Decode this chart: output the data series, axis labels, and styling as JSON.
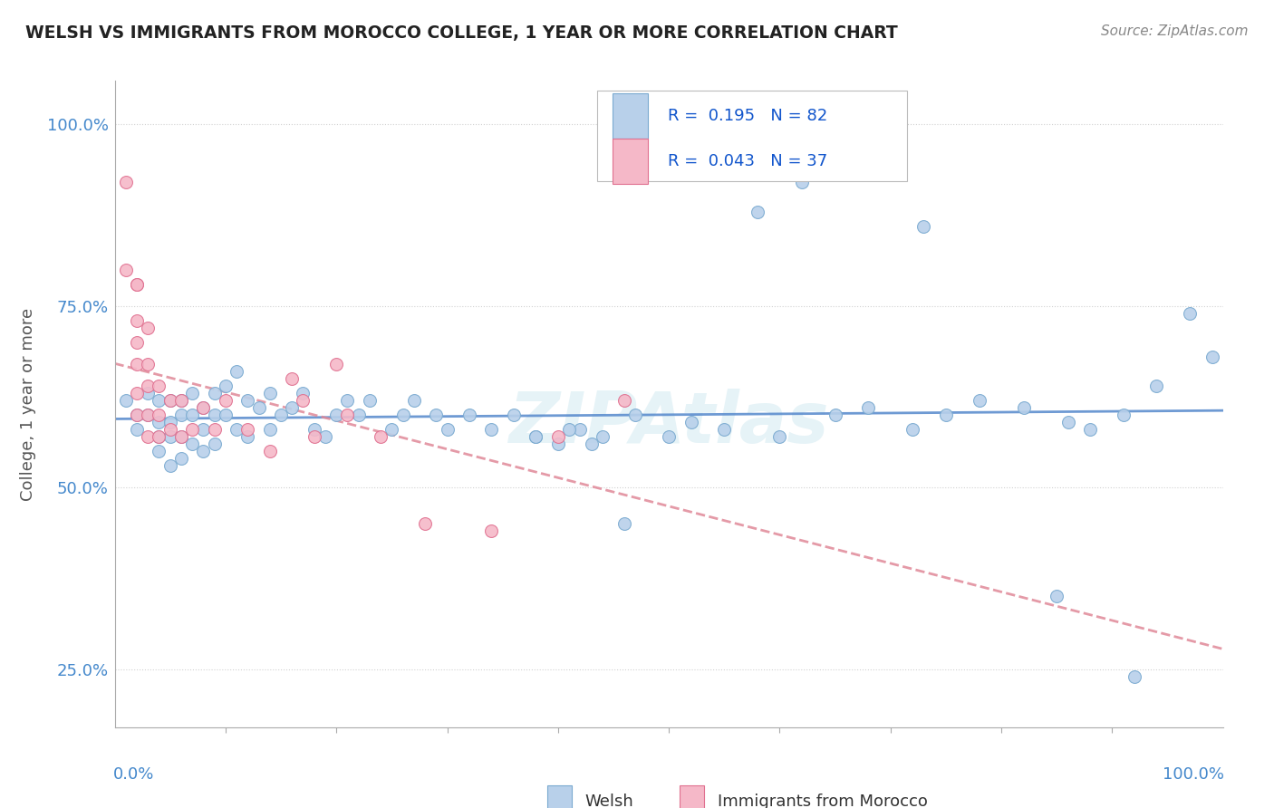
{
  "title": "WELSH VS IMMIGRANTS FROM MOROCCO COLLEGE, 1 YEAR OR MORE CORRELATION CHART",
  "source_text": "Source: ZipAtlas.com",
  "ylabel": "College, 1 year or more",
  "ytick_labels": [
    "25.0%",
    "50.0%",
    "75.0%",
    "100.0%"
  ],
  "ytick_values": [
    0.25,
    0.5,
    0.75,
    1.0
  ],
  "xlim": [
    0.0,
    1.0
  ],
  "ylim": [
    0.17,
    1.06
  ],
  "watermark": "ZIPAtlas",
  "welsh_color": "#b8d0ea",
  "morocco_color": "#f5b8c8",
  "welsh_edge_color": "#7aaad0",
  "morocco_edge_color": "#e07090",
  "trend_welsh_color": "#5588cc",
  "trend_morocco_color": "#e08898",
  "background_color": "#ffffff",
  "grid_color": "#cccccc",
  "title_color": "#222222",
  "axis_label_color": "#4488cc",
  "welsh_x": [
    0.01,
    0.02,
    0.02,
    0.03,
    0.03,
    0.04,
    0.04,
    0.04,
    0.04,
    0.05,
    0.05,
    0.05,
    0.05,
    0.06,
    0.06,
    0.06,
    0.06,
    0.07,
    0.07,
    0.07,
    0.08,
    0.08,
    0.08,
    0.09,
    0.09,
    0.09,
    0.1,
    0.1,
    0.11,
    0.11,
    0.12,
    0.12,
    0.13,
    0.14,
    0.14,
    0.15,
    0.16,
    0.17,
    0.18,
    0.19,
    0.2,
    0.21,
    0.22,
    0.23,
    0.25,
    0.26,
    0.27,
    0.29,
    0.3,
    0.32,
    0.34,
    0.36,
    0.38,
    0.4,
    0.42,
    0.44,
    0.46,
    0.47,
    0.5,
    0.52,
    0.38,
    0.41,
    0.43,
    0.55,
    0.6,
    0.65,
    0.68,
    0.72,
    0.75,
    0.78,
    0.82,
    0.86,
    0.88,
    0.91,
    0.94,
    0.97,
    0.99,
    0.73,
    0.58,
    0.62,
    0.85,
    0.92
  ],
  "welsh_y": [
    0.62,
    0.6,
    0.58,
    0.63,
    0.6,
    0.57,
    0.62,
    0.59,
    0.55,
    0.62,
    0.59,
    0.57,
    0.53,
    0.62,
    0.6,
    0.57,
    0.54,
    0.63,
    0.6,
    0.56,
    0.61,
    0.58,
    0.55,
    0.63,
    0.6,
    0.56,
    0.64,
    0.6,
    0.66,
    0.58,
    0.62,
    0.57,
    0.61,
    0.63,
    0.58,
    0.6,
    0.61,
    0.63,
    0.58,
    0.57,
    0.6,
    0.62,
    0.6,
    0.62,
    0.58,
    0.6,
    0.62,
    0.6,
    0.58,
    0.6,
    0.58,
    0.6,
    0.57,
    0.56,
    0.58,
    0.57,
    0.45,
    0.6,
    0.57,
    0.59,
    0.57,
    0.58,
    0.56,
    0.58,
    0.57,
    0.6,
    0.61,
    0.58,
    0.6,
    0.62,
    0.61,
    0.59,
    0.58,
    0.6,
    0.64,
    0.74,
    0.68,
    0.86,
    0.88,
    0.92,
    0.35,
    0.24
  ],
  "morocco_x": [
    0.01,
    0.01,
    0.02,
    0.02,
    0.02,
    0.02,
    0.02,
    0.02,
    0.02,
    0.03,
    0.03,
    0.03,
    0.03,
    0.03,
    0.04,
    0.04,
    0.04,
    0.05,
    0.05,
    0.06,
    0.06,
    0.07,
    0.08,
    0.09,
    0.1,
    0.12,
    0.14,
    0.16,
    0.17,
    0.18,
    0.21,
    0.24,
    0.28,
    0.34,
    0.4,
    0.46,
    0.2
  ],
  "morocco_y": [
    0.92,
    0.8,
    0.78,
    0.73,
    0.7,
    0.67,
    0.63,
    0.6,
    0.78,
    0.72,
    0.67,
    0.64,
    0.6,
    0.57,
    0.64,
    0.6,
    0.57,
    0.62,
    0.58,
    0.62,
    0.57,
    0.58,
    0.61,
    0.58,
    0.62,
    0.58,
    0.55,
    0.65,
    0.62,
    0.57,
    0.6,
    0.57,
    0.45,
    0.44,
    0.57,
    0.62,
    0.67
  ]
}
